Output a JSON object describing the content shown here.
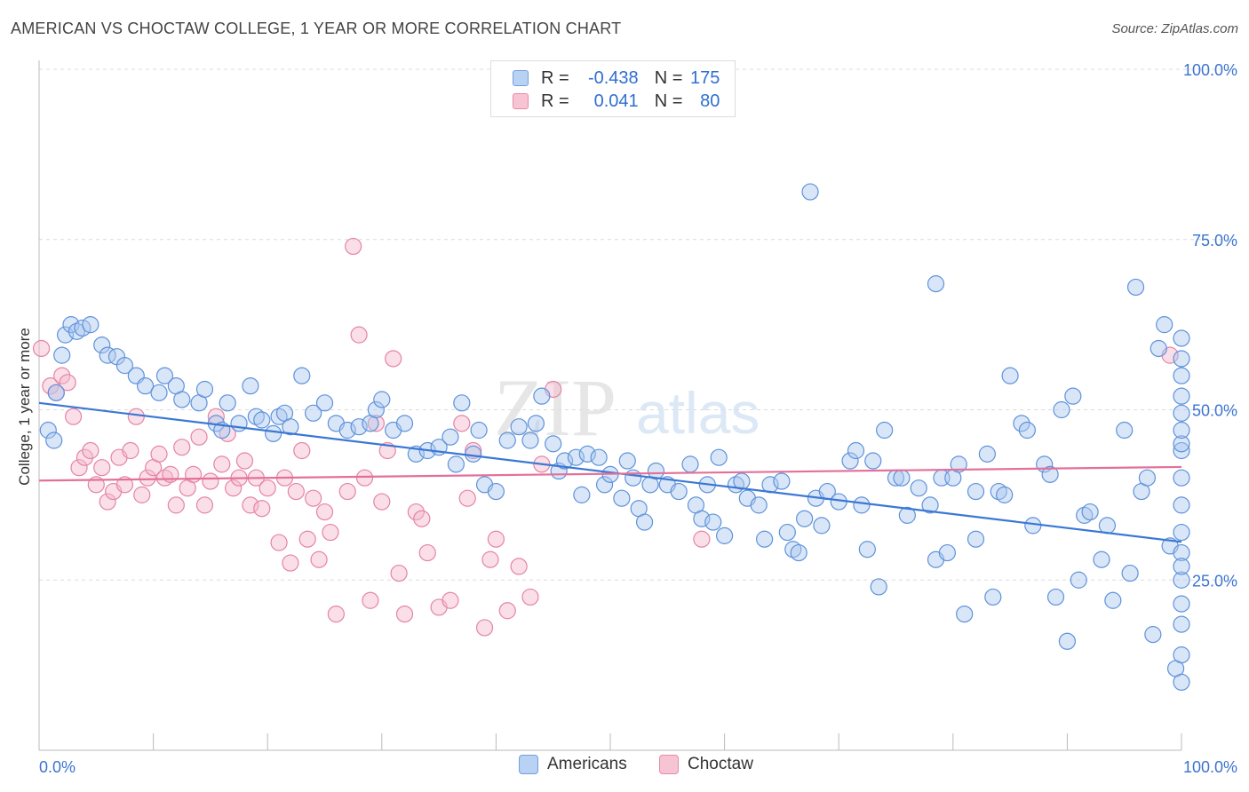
{
  "title": "AMERICAN VS CHOCTAW COLLEGE, 1 YEAR OR MORE CORRELATION CHART",
  "source": "Source: ZipAtlas.com",
  "watermark": {
    "zip": "ZIP",
    "atlas": "atlas"
  },
  "legend": {
    "r_label": "R =",
    "n_label": "N =",
    "rows": [
      {
        "r": "-0.438",
        "n": "175",
        "color": "#6fa0e0",
        "fill": "#b9d1f3"
      },
      {
        "r": "0.041",
        "n": "80",
        "color": "#e98aa8",
        "fill": "#f7c4d3"
      }
    ]
  },
  "bottom_legend": [
    {
      "label": "Americans",
      "color": "#6fa0e0",
      "fill": "#b9d1f3"
    },
    {
      "label": "Choctaw",
      "color": "#e98aa8",
      "fill": "#f7c4d3"
    }
  ],
  "chart_data": {
    "type": "scatter",
    "title": "AMERICAN VS CHOCTAW COLLEGE, 1 YEAR OR MORE CORRELATION CHART",
    "xlabel": "",
    "ylabel": "College, 1 year or more",
    "xlim": [
      0,
      100
    ],
    "ylim": [
      0,
      100
    ],
    "x_tick_labels": [
      "0.0%",
      "100.0%"
    ],
    "y_ticks": [
      25,
      50,
      75,
      100
    ],
    "y_tick_labels": [
      "25.0%",
      "50.0%",
      "75.0%",
      "100.0%"
    ],
    "grid": true,
    "colors": {
      "americans": "#3a78d4",
      "choctaw": "#e4709a",
      "y_tick_text": "#3b73d0"
    },
    "series": [
      {
        "name": "Americans",
        "r": -0.438,
        "n": 175,
        "trend": {
          "x": [
            0,
            100
          ],
          "y": [
            51,
            30.6
          ]
        },
        "points": [
          [
            0.8,
            47
          ],
          [
            1.3,
            45.5
          ],
          [
            1.5,
            52.5
          ],
          [
            2,
            58
          ],
          [
            2.3,
            61
          ],
          [
            2.8,
            62.5
          ],
          [
            3.3,
            61.5
          ],
          [
            3.8,
            62
          ],
          [
            4.5,
            62.5
          ],
          [
            5.5,
            59.5
          ],
          [
            6,
            58
          ],
          [
            6.8,
            57.8
          ],
          [
            7.5,
            56.5
          ],
          [
            8.5,
            55
          ],
          [
            9.3,
            53.5
          ],
          [
            10.5,
            52.5
          ],
          [
            11,
            55
          ],
          [
            12,
            53.5
          ],
          [
            12.5,
            51.5
          ],
          [
            14,
            51
          ],
          [
            14.5,
            53
          ],
          [
            15.5,
            48
          ],
          [
            16,
            47
          ],
          [
            16.5,
            51
          ],
          [
            17.5,
            48
          ],
          [
            18.5,
            53.5
          ],
          [
            19,
            49
          ],
          [
            19.5,
            48.5
          ],
          [
            20.5,
            46.5
          ],
          [
            21,
            49
          ],
          [
            21.5,
            49.5
          ],
          [
            22,
            47.5
          ],
          [
            23,
            55
          ],
          [
            24,
            49.5
          ],
          [
            25,
            51
          ],
          [
            26,
            48
          ],
          [
            27,
            47
          ],
          [
            28,
            47.5
          ],
          [
            29,
            48
          ],
          [
            29.5,
            50
          ],
          [
            30,
            51.5
          ],
          [
            31,
            47
          ],
          [
            32,
            48
          ],
          [
            33,
            43.5
          ],
          [
            34,
            44
          ],
          [
            35,
            44.5
          ],
          [
            36,
            46
          ],
          [
            36.5,
            42
          ],
          [
            37,
            51
          ],
          [
            38,
            43.5
          ],
          [
            38.5,
            47
          ],
          [
            39,
            39
          ],
          [
            40,
            38
          ],
          [
            41,
            45.5
          ],
          [
            42,
            47.5
          ],
          [
            43,
            45.5
          ],
          [
            43.5,
            48
          ],
          [
            44,
            52
          ],
          [
            45,
            45
          ],
          [
            45.5,
            41
          ],
          [
            46,
            42.5
          ],
          [
            47,
            43
          ],
          [
            47.5,
            37.5
          ],
          [
            48,
            43.5
          ],
          [
            49,
            43
          ],
          [
            49.5,
            39
          ],
          [
            50,
            40.5
          ],
          [
            51,
            37
          ],
          [
            51.5,
            42.5
          ],
          [
            52,
            40
          ],
          [
            52.5,
            35.5
          ],
          [
            53,
            33.5
          ],
          [
            53.5,
            39
          ],
          [
            54,
            41
          ],
          [
            55,
            39
          ],
          [
            56,
            38
          ],
          [
            57,
            42
          ],
          [
            57.5,
            36
          ],
          [
            58,
            34
          ],
          [
            58.5,
            39
          ],
          [
            59,
            33.5
          ],
          [
            59.5,
            43
          ],
          [
            60,
            31.5
          ],
          [
            61,
            39
          ],
          [
            61.5,
            39.5
          ],
          [
            62,
            37
          ],
          [
            63,
            36
          ],
          [
            63.5,
            31
          ],
          [
            64,
            39
          ],
          [
            65,
            39.5
          ],
          [
            65.5,
            32
          ],
          [
            66,
            29.5
          ],
          [
            66.5,
            29
          ],
          [
            67,
            34
          ],
          [
            67.5,
            82
          ],
          [
            68,
            37
          ],
          [
            68.5,
            33
          ],
          [
            69,
            38
          ],
          [
            70,
            36.5
          ],
          [
            71,
            42.5
          ],
          [
            71.5,
            44
          ],
          [
            72,
            36
          ],
          [
            72.5,
            29.5
          ],
          [
            73,
            42.5
          ],
          [
            73.5,
            24
          ],
          [
            74,
            47
          ],
          [
            75,
            40
          ],
          [
            75.5,
            40
          ],
          [
            76,
            34.5
          ],
          [
            77,
            38.5
          ],
          [
            78,
            36
          ],
          [
            78.5,
            28
          ],
          [
            78.5,
            68.5
          ],
          [
            79,
            40
          ],
          [
            79.5,
            29
          ],
          [
            80,
            40
          ],
          [
            80.5,
            42
          ],
          [
            81,
            20
          ],
          [
            82,
            31
          ],
          [
            82,
            38
          ],
          [
            83,
            43.5
          ],
          [
            83.5,
            22.5
          ],
          [
            84,
            38
          ],
          [
            84.5,
            37.5
          ],
          [
            85,
            55
          ],
          [
            86,
            48
          ],
          [
            86.5,
            47
          ],
          [
            87,
            33
          ],
          [
            88,
            42
          ],
          [
            88.5,
            40.5
          ],
          [
            89,
            22.5
          ],
          [
            89.5,
            50
          ],
          [
            90,
            16
          ],
          [
            90.5,
            52
          ],
          [
            91,
            25
          ],
          [
            91.5,
            34.5
          ],
          [
            92,
            35
          ],
          [
            93,
            28
          ],
          [
            93.5,
            33
          ],
          [
            94,
            22
          ],
          [
            95,
            47
          ],
          [
            95.5,
            26
          ],
          [
            96,
            68
          ],
          [
            96.5,
            38
          ],
          [
            97,
            40
          ],
          [
            97.5,
            17
          ],
          [
            98,
            59
          ],
          [
            98.5,
            62.5
          ],
          [
            99,
            30
          ],
          [
            99.5,
            12
          ],
          [
            100,
            57.5
          ],
          [
            100,
            44
          ],
          [
            100,
            32
          ],
          [
            100,
            60.5
          ],
          [
            100,
            25
          ],
          [
            100,
            55
          ],
          [
            100,
            21.5
          ],
          [
            100,
            49.5
          ],
          [
            100,
            14
          ],
          [
            100,
            10
          ],
          [
            100,
            45
          ],
          [
            100,
            36
          ],
          [
            100,
            18.5
          ],
          [
            100,
            40
          ],
          [
            100,
            29
          ],
          [
            100,
            52
          ],
          [
            100,
            47
          ],
          [
            100,
            27
          ]
        ]
      },
      {
        "name": "Choctaw",
        "r": 0.041,
        "n": 80,
        "trend": {
          "x": [
            0,
            100
          ],
          "y": [
            39.6,
            41.6
          ]
        },
        "points": [
          [
            0.2,
            59
          ],
          [
            1,
            53.5
          ],
          [
            1.5,
            52.5
          ],
          [
            2,
            55
          ],
          [
            2.5,
            54
          ],
          [
            3,
            49
          ],
          [
            3.5,
            41.5
          ],
          [
            4,
            43
          ],
          [
            4.5,
            44
          ],
          [
            5,
            39
          ],
          [
            5.5,
            41.5
          ],
          [
            6,
            36.5
          ],
          [
            6.5,
            38
          ],
          [
            7,
            43
          ],
          [
            7.5,
            39
          ],
          [
            8,
            44
          ],
          [
            8.5,
            49
          ],
          [
            9,
            37.5
          ],
          [
            9.5,
            40
          ],
          [
            10,
            41.5
          ],
          [
            10.5,
            43.5
          ],
          [
            11,
            40
          ],
          [
            11.5,
            40.5
          ],
          [
            12,
            36
          ],
          [
            12.5,
            44.5
          ],
          [
            13,
            38.5
          ],
          [
            13.5,
            40.5
          ],
          [
            14,
            46
          ],
          [
            14.5,
            36
          ],
          [
            15,
            39.5
          ],
          [
            15.5,
            49
          ],
          [
            16,
            42
          ],
          [
            16.5,
            46.5
          ],
          [
            17,
            38.5
          ],
          [
            17.5,
            40
          ],
          [
            18,
            42.5
          ],
          [
            18.5,
            36
          ],
          [
            19,
            40
          ],
          [
            19.5,
            35.5
          ],
          [
            20,
            38.5
          ],
          [
            21,
            30.5
          ],
          [
            21.5,
            40
          ],
          [
            22,
            27.5
          ],
          [
            22.5,
            38
          ],
          [
            23,
            44
          ],
          [
            23.5,
            31
          ],
          [
            24,
            37
          ],
          [
            24.5,
            28
          ],
          [
            25,
            35
          ],
          [
            25.5,
            32
          ],
          [
            26,
            20
          ],
          [
            27,
            38
          ],
          [
            27.5,
            74
          ],
          [
            28,
            61
          ],
          [
            28.5,
            40
          ],
          [
            29,
            22
          ],
          [
            29.5,
            48
          ],
          [
            30,
            36.5
          ],
          [
            30.5,
            44
          ],
          [
            31,
            57.5
          ],
          [
            31.5,
            26
          ],
          [
            32,
            20
          ],
          [
            33,
            35
          ],
          [
            33.5,
            34
          ],
          [
            34,
            29
          ],
          [
            35,
            21
          ],
          [
            36,
            22
          ],
          [
            37,
            48
          ],
          [
            37.5,
            37
          ],
          [
            38,
            44
          ],
          [
            39,
            18
          ],
          [
            39.5,
            28
          ],
          [
            40,
            31
          ],
          [
            41,
            20.5
          ],
          [
            42,
            27
          ],
          [
            43,
            22.5
          ],
          [
            44,
            42
          ],
          [
            45,
            53
          ],
          [
            58,
            31
          ],
          [
            99,
            58
          ]
        ]
      }
    ]
  }
}
